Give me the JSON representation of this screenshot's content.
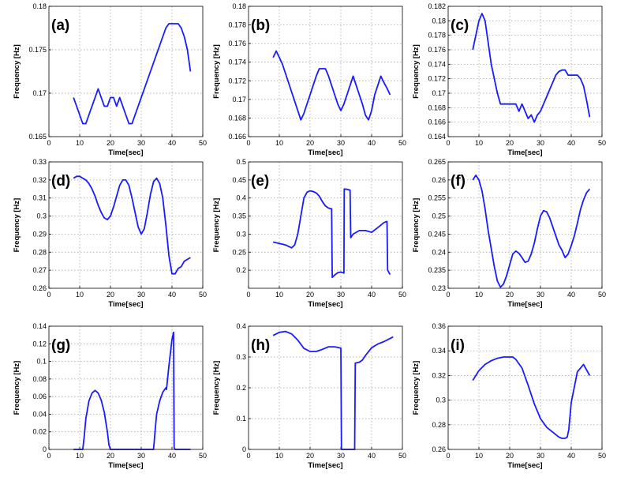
{
  "chart_data": [
    {
      "panel": "(a)",
      "type": "line",
      "xlabel": "Time[sec]",
      "ylabel": "Frequency [Hz]",
      "xlim": [
        0,
        50
      ],
      "ylim": [
        0.165,
        0.18
      ],
      "xticks": [
        "0",
        "10",
        "20",
        "30",
        "40",
        "50"
      ],
      "yticks": [
        "0.165",
        "0.17",
        "0.175",
        "0.18"
      ],
      "x": [
        8,
        9,
        10,
        11,
        12,
        13,
        14,
        15,
        16,
        17,
        18,
        19,
        20,
        21,
        22,
        23,
        24,
        25,
        26,
        27,
        28,
        29,
        30,
        31,
        32,
        33,
        34,
        35,
        36,
        37,
        38,
        39,
        40,
        41,
        42,
        43,
        44,
        45,
        46
      ],
      "y": [
        0.1695,
        0.1685,
        0.1675,
        0.1665,
        0.1665,
        0.1675,
        0.1685,
        0.1695,
        0.1705,
        0.1695,
        0.1685,
        0.1685,
        0.1695,
        0.1695,
        0.1685,
        0.1695,
        0.1685,
        0.1675,
        0.1665,
        0.1665,
        0.1675,
        0.1685,
        0.1695,
        0.1705,
        0.1715,
        0.1725,
        0.1735,
        0.1745,
        0.1755,
        0.1765,
        0.1775,
        0.178,
        0.178,
        0.178,
        0.178,
        0.1775,
        0.1765,
        0.175,
        0.1725
      ]
    },
    {
      "panel": "(b)",
      "type": "line",
      "xlabel": "Time[sec]",
      "ylabel": "Frequency [Hz]",
      "xlim": [
        0,
        50
      ],
      "ylim": [
        0.166,
        0.18
      ],
      "xticks": [
        "0",
        "10",
        "20",
        "30",
        "40",
        "50"
      ],
      "yticks": [
        "0.166",
        "0.168",
        "0.17",
        "0.172",
        "0.174",
        "0.176",
        "0.178",
        "0.18"
      ],
      "x": [
        8,
        9,
        10,
        11,
        12,
        13,
        14,
        15,
        16,
        17,
        18,
        19,
        20,
        21,
        22,
        23,
        24,
        25,
        26,
        27,
        28,
        29,
        30,
        31,
        32,
        33,
        34,
        35,
        36,
        37,
        38,
        39,
        40,
        41,
        42,
        43,
        44,
        45,
        46
      ],
      "y": [
        0.1745,
        0.1752,
        0.1745,
        0.1738,
        0.1728,
        0.1718,
        0.1708,
        0.1698,
        0.1688,
        0.1678,
        0.1685,
        0.1695,
        0.1705,
        0.1715,
        0.1725,
        0.1733,
        0.1733,
        0.1733,
        0.1725,
        0.1715,
        0.1705,
        0.1695,
        0.1688,
        0.1695,
        0.1705,
        0.1715,
        0.1725,
        0.1715,
        0.1705,
        0.1695,
        0.1683,
        0.1678,
        0.1688,
        0.1705,
        0.1715,
        0.1725,
        0.1718,
        0.1712,
        0.1705
      ]
    },
    {
      "panel": "(c)",
      "type": "line",
      "xlabel": "Time[sec]",
      "ylabel": "Frequency [Hz]",
      "xlim": [
        0,
        50
      ],
      "ylim": [
        0.164,
        0.182
      ],
      "xticks": [
        "0",
        "10",
        "20",
        "30",
        "40",
        "50"
      ],
      "yticks": [
        "0.164",
        "0.166",
        "0.168",
        "0.17",
        "0.172",
        "0.174",
        "0.176",
        "0.178",
        "0.18",
        "0.182"
      ],
      "x": [
        8,
        9,
        10,
        11,
        12,
        13,
        14,
        15,
        16,
        17,
        18,
        19,
        20,
        21,
        22,
        23,
        24,
        25,
        26,
        27,
        28,
        29,
        30,
        31,
        32,
        33,
        34,
        35,
        36,
        37,
        38,
        39,
        40,
        41,
        42,
        43,
        44,
        45,
        46
      ],
      "y": [
        0.176,
        0.178,
        0.18,
        0.181,
        0.18,
        0.177,
        0.174,
        0.172,
        0.17,
        0.1685,
        0.1685,
        0.1685,
        0.1685,
        0.1685,
        0.1685,
        0.1675,
        0.1685,
        0.1675,
        0.1665,
        0.167,
        0.166,
        0.167,
        0.1675,
        0.1685,
        0.1695,
        0.1705,
        0.1715,
        0.1725,
        0.173,
        0.1732,
        0.1732,
        0.1725,
        0.1725,
        0.1725,
        0.1725,
        0.172,
        0.171,
        0.169,
        0.1667
      ]
    },
    {
      "panel": "(d)",
      "type": "line",
      "xlabel": "Time[sec]",
      "ylabel": "Frequency [Hz]",
      "xlim": [
        0,
        50
      ],
      "ylim": [
        0.26,
        0.33
      ],
      "xticks": [
        "0",
        "10",
        "20",
        "30",
        "40",
        "50"
      ],
      "yticks": [
        "0.26",
        "0.27",
        "0.28",
        "0.29",
        "0.3",
        "0.31",
        "0.32",
        "0.33"
      ],
      "x": [
        8,
        9,
        10,
        11,
        12,
        13,
        14,
        15,
        16,
        17,
        18,
        19,
        20,
        21,
        22,
        23,
        24,
        25,
        26,
        27,
        28,
        29,
        30,
        31,
        32,
        33,
        34,
        35,
        36,
        37,
        38,
        39,
        40,
        41,
        42,
        43,
        44,
        45,
        46
      ],
      "y": [
        0.321,
        0.322,
        0.322,
        0.321,
        0.32,
        0.318,
        0.315,
        0.311,
        0.306,
        0.302,
        0.299,
        0.298,
        0.3,
        0.305,
        0.311,
        0.317,
        0.32,
        0.32,
        0.317,
        0.31,
        0.302,
        0.294,
        0.29,
        0.293,
        0.302,
        0.312,
        0.319,
        0.321,
        0.318,
        0.31,
        0.295,
        0.278,
        0.268,
        0.268,
        0.271,
        0.272,
        0.275,
        0.276,
        0.277
      ]
    },
    {
      "panel": "(e)",
      "type": "line",
      "xlabel": "Time[sec]",
      "ylabel": "Frequency [Hz]",
      "xlim": [
        0,
        50
      ],
      "ylim": [
        0.15,
        0.5
      ],
      "xticks": [
        "0",
        "10",
        "20",
        "30",
        "40",
        "50"
      ],
      "yticks": [
        "0.2",
        "0.25",
        "0.3",
        "0.35",
        "0.4",
        "0.45",
        "0.5"
      ],
      "x": [
        8,
        10,
        12,
        14,
        15,
        16,
        17,
        18,
        19,
        20,
        21,
        22,
        23,
        24,
        25,
        26,
        27,
        27.2,
        28,
        29,
        30,
        31,
        31.1,
        32,
        33,
        33.2,
        34,
        36,
        38,
        40,
        42,
        44,
        45,
        45.2,
        46
      ],
      "y": [
        0.278,
        0.274,
        0.27,
        0.262,
        0.27,
        0.3,
        0.35,
        0.4,
        0.416,
        0.42,
        0.418,
        0.414,
        0.405,
        0.39,
        0.378,
        0.372,
        0.37,
        0.18,
        0.187,
        0.193,
        0.195,
        0.192,
        0.425,
        0.424,
        0.422,
        0.29,
        0.3,
        0.31,
        0.31,
        0.305,
        0.318,
        0.332,
        0.335,
        0.2,
        0.188
      ]
    },
    {
      "panel": "(f)",
      "type": "line",
      "xlabel": "Time[sec]",
      "ylabel": "Frequency [Hz]",
      "xlim": [
        0,
        50
      ],
      "ylim": [
        0.23,
        0.265
      ],
      "xticks": [
        "0",
        "10",
        "20",
        "30",
        "40",
        "50"
      ],
      "yticks": [
        "0.23",
        "0.235",
        "0.24",
        "0.245",
        "0.25",
        "0.255",
        "0.26",
        "0.265"
      ],
      "x": [
        8,
        9,
        10,
        11,
        12,
        13,
        14,
        15,
        16,
        17,
        18,
        19,
        20,
        21,
        22,
        23,
        24,
        25,
        26,
        27,
        28,
        29,
        30,
        31,
        32,
        33,
        34,
        35,
        36,
        37,
        38,
        39,
        40,
        41,
        42,
        43,
        44,
        45,
        46
      ],
      "y": [
        0.26,
        0.2613,
        0.26,
        0.257,
        0.252,
        0.246,
        0.241,
        0.236,
        0.232,
        0.2303,
        0.2312,
        0.2335,
        0.2365,
        0.2395,
        0.2403,
        0.2397,
        0.2385,
        0.2372,
        0.2375,
        0.2395,
        0.2425,
        0.2465,
        0.25,
        0.2515,
        0.2512,
        0.2495,
        0.247,
        0.2445,
        0.242,
        0.2405,
        0.2385,
        0.2395,
        0.2418,
        0.2445,
        0.248,
        0.2518,
        0.2545,
        0.2565,
        0.2575
      ]
    },
    {
      "panel": "(g)",
      "type": "line",
      "xlabel": "Time[sec]",
      "ylabel": "Frequency [Hz]",
      "xlim": [
        0,
        50
      ],
      "ylim": [
        0,
        0.14
      ],
      "xticks": [
        "0",
        "10",
        "20",
        "30",
        "40",
        "50"
      ],
      "yticks": [
        "0",
        "0.02",
        "0.04",
        "0.06",
        "0.08",
        "0.1",
        "0.12",
        "0.14"
      ],
      "x": [
        8,
        11,
        11.5,
        12,
        13,
        14,
        15,
        16,
        17,
        18,
        19,
        19.5,
        20,
        34,
        34.5,
        35,
        36,
        37,
        38,
        38.2,
        39,
        40,
        40.5,
        40.7,
        41,
        46
      ],
      "y": [
        0,
        0,
        0.015,
        0.035,
        0.055,
        0.064,
        0.067,
        0.064,
        0.056,
        0.042,
        0.02,
        0.005,
        0,
        0,
        0.02,
        0.04,
        0.055,
        0.065,
        0.07,
        0.068,
        0.095,
        0.125,
        0.133,
        0.002,
        0,
        0
      ]
    },
    {
      "panel": "(h)",
      "type": "line",
      "xlabel": "Time[sec]",
      "ylabel": "Frequency [Hz]",
      "xlim": [
        0,
        50
      ],
      "ylim": [
        0,
        0.4
      ],
      "xticks": [
        "0",
        "10",
        "20",
        "30",
        "40",
        "50"
      ],
      "yticks": [
        "0",
        "0.1",
        "0.2",
        "0.3",
        "0.4"
      ],
      "x": [
        8,
        10,
        12,
        14,
        16,
        18,
        20,
        22,
        24,
        26,
        28,
        29,
        30,
        30.2,
        31,
        33,
        34.5,
        34.7,
        36,
        37,
        38,
        40,
        42,
        44,
        46,
        47
      ],
      "y": [
        0.37,
        0.38,
        0.383,
        0.375,
        0.355,
        0.328,
        0.318,
        0.318,
        0.325,
        0.333,
        0.333,
        0.331,
        0.329,
        0,
        0,
        0,
        0,
        0.28,
        0.283,
        0.29,
        0.305,
        0.33,
        0.342,
        0.35,
        0.36,
        0.365
      ]
    },
    {
      "panel": "(i)",
      "type": "line",
      "xlabel": "Time[sec]",
      "ylabel": "Frequency [Hz]",
      "xlim": [
        0,
        50
      ],
      "ylim": [
        0.26,
        0.36
      ],
      "xticks": [
        "0",
        "10",
        "20",
        "30",
        "40",
        "50"
      ],
      "yticks": [
        "0.26",
        "0.28",
        "0.3",
        "0.32",
        "0.34",
        "0.36"
      ],
      "x": [
        8,
        10,
        12,
        14,
        16,
        18,
        20,
        21,
        22,
        24,
        26,
        28,
        30,
        32,
        34,
        36,
        37,
        38,
        38.7,
        39.2,
        40,
        42,
        44,
        46
      ],
      "y": [
        0.316,
        0.324,
        0.329,
        0.332,
        0.334,
        0.335,
        0.335,
        0.335,
        0.333,
        0.326,
        0.312,
        0.297,
        0.285,
        0.278,
        0.274,
        0.27,
        0.269,
        0.269,
        0.27,
        0.276,
        0.298,
        0.323,
        0.329,
        0.32
      ]
    }
  ]
}
